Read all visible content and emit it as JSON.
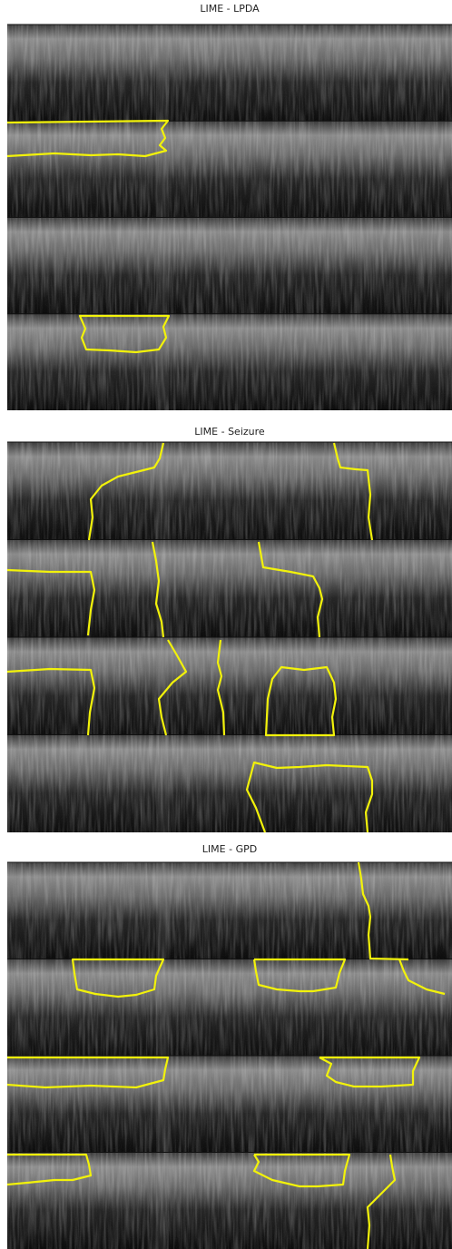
{
  "panels": [
    {
      "title": "LIME - LPDA"
    },
    {
      "title": "LIME - Seizure"
    },
    {
      "title": "LIME - GPD"
    }
  ]
}
